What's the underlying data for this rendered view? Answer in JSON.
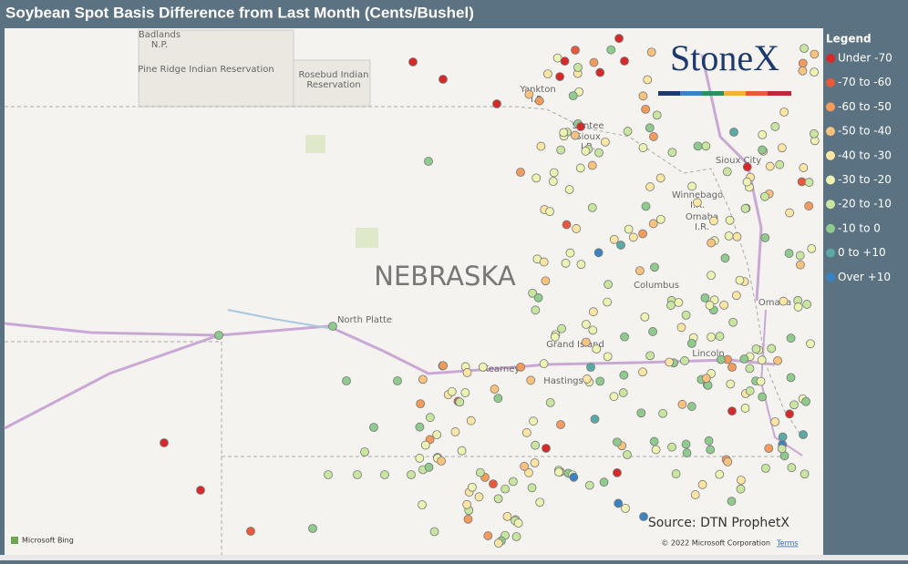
{
  "title": "Soybean Spot Basis Difference from Last Month (Cents/Bushel)",
  "legend": {
    "title": "Legend",
    "items": [
      {
        "label": "Under -70",
        "color": "#d62a2a"
      },
      {
        "label": "-70 to -60",
        "color": "#e8583a"
      },
      {
        "label": "-60 to -50",
        "color": "#f29b5c"
      },
      {
        "label": "-50 to -40",
        "color": "#f9c27e"
      },
      {
        "label": "-40 to -30",
        "color": "#fde6a4"
      },
      {
        "label": "-30 to -20",
        "color": "#eef3b2"
      },
      {
        "label": "-20 to -10",
        "color": "#c8e6a0"
      },
      {
        "label": "-10 to 0",
        "color": "#8fcb8c"
      },
      {
        "label": "0 to +10",
        "color": "#5aa9a4"
      },
      {
        "label": "Over +10",
        "color": "#3b82c4"
      }
    ]
  },
  "logo": "StoneX",
  "map": {
    "labels": {
      "badlands": [
        "Badlands",
        "N.P."
      ],
      "pine_ridge": [
        "Pine Ridge Indian Reservation"
      ],
      "rosebud": [
        "Rosebud Indian",
        "Reservation"
      ],
      "yankton": [
        "Yankton",
        "I.R."
      ],
      "santee": [
        "Santee",
        "Sioux",
        "I.R."
      ],
      "sioux_city": [
        "Sioux City"
      ],
      "winnebago": [
        "Winnebago",
        "I.R."
      ],
      "omaha_ir": [
        "Omaha",
        "I.R."
      ],
      "state": [
        "NEBRASKA"
      ],
      "north_platte": [
        "North Platte"
      ],
      "columbus": [
        "Columbus"
      ],
      "omaha": [
        "Omaha"
      ],
      "grand_island": [
        "Grand Island"
      ],
      "kearney": [
        "Kearney"
      ],
      "hastings": [
        "Hastings"
      ],
      "lincoln": [
        "Lincoln"
      ]
    }
  },
  "source": "Source: DTN ProphetX",
  "attribution": {
    "bing": "Microsoft Bing",
    "copyright": "© 2022 Microsoft Corporation",
    "terms": "Terms"
  }
}
